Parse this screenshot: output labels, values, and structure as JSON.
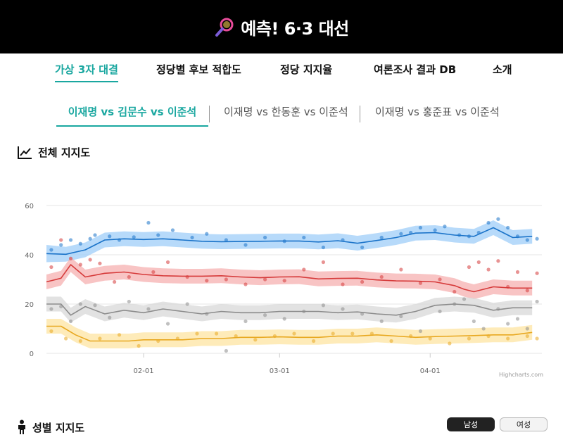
{
  "header": {
    "title": "예측! 6·3 대선"
  },
  "nav": [
    {
      "label": "가상 3자 대결",
      "active": true
    },
    {
      "label": "정당별 후보 적합도",
      "active": false
    },
    {
      "label": "정당 지지율",
      "active": false
    },
    {
      "label": "여론조사 결과 DB",
      "active": false
    },
    {
      "label": "소개",
      "active": false
    }
  ],
  "subnav": [
    {
      "label": "이재명 vs 김문수 vs 이준석",
      "active": true
    },
    {
      "label": "이재명 vs 한동훈 vs 이준석",
      "active": false
    },
    {
      "label": "이재명 vs 홍준표 vs 이준석",
      "active": false
    }
  ],
  "sections": {
    "overall": "전체 지지도",
    "gender": "성별 지지도"
  },
  "gender_buttons": [
    {
      "label": "남성",
      "active": true
    },
    {
      "label": "여성",
      "active": false
    }
  ],
  "chart_data": {
    "type": "line",
    "ylim": [
      0,
      60
    ],
    "yticks": [
      0,
      20,
      40,
      60
    ],
    "xlim": [
      "2025-01-12",
      "2025-04-24"
    ],
    "xticks": [
      "02-01",
      "03-01",
      "04-01"
    ],
    "xtick_dates": [
      "2025-02-01",
      "2025-03-01",
      "2025-04-01"
    ],
    "credit": "Highcharts.com",
    "series": [
      {
        "color": "#1a73c9",
        "band_color": "#9fcdf8",
        "x": [
          "2025-01-12",
          "2025-01-16",
          "2025-01-20",
          "2025-01-24",
          "2025-01-28",
          "2025-02-01",
          "2025-02-05",
          "2025-02-09",
          "2025-02-13",
          "2025-02-17",
          "2025-02-21",
          "2025-02-25",
          "2025-03-01",
          "2025-03-05",
          "2025-03-09",
          "2025-03-13",
          "2025-03-17",
          "2025-03-21",
          "2025-03-25",
          "2025-03-29",
          "2025-04-02",
          "2025-04-06",
          "2025-04-10",
          "2025-04-14",
          "2025-04-18",
          "2025-04-22"
        ],
        "values": [
          40.5,
          40.2,
          42,
          46,
          46.5,
          46.2,
          46.5,
          46,
          45.5,
          45.3,
          45.4,
          45.5,
          45.6,
          45.6,
          45.2,
          45.7,
          44.7,
          45.8,
          47,
          48.8,
          49,
          48,
          47.5,
          51,
          47,
          47.5
        ],
        "band": [
          3.5,
          3,
          3,
          3,
          3,
          3,
          3,
          3,
          3,
          3,
          3,
          3,
          3,
          3,
          3,
          3,
          3,
          3,
          3,
          3,
          3,
          3,
          3,
          3,
          3,
          3
        ],
        "points": [
          [
            "2025-01-13",
            42
          ],
          [
            "2025-01-15",
            44
          ],
          [
            "2025-01-17",
            46
          ],
          [
            "2025-01-19",
            44.5
          ],
          [
            "2025-01-21",
            46.5
          ],
          [
            "2025-01-22",
            48
          ],
          [
            "2025-01-25",
            47.5
          ],
          [
            "2025-01-27",
            46
          ],
          [
            "2025-01-30",
            47.2
          ],
          [
            "2025-02-02",
            53
          ],
          [
            "2025-02-04",
            48
          ],
          [
            "2025-02-07",
            50
          ],
          [
            "2025-02-11",
            47
          ],
          [
            "2025-02-14",
            48.5
          ],
          [
            "2025-02-18",
            46
          ],
          [
            "2025-02-22",
            44
          ],
          [
            "2025-02-26",
            47
          ],
          [
            "2025-03-02",
            45.5
          ],
          [
            "2025-03-06",
            47
          ],
          [
            "2025-03-10",
            43
          ],
          [
            "2025-03-14",
            46
          ],
          [
            "2025-03-18",
            43
          ],
          [
            "2025-03-22",
            47
          ],
          [
            "2025-03-26",
            48.5
          ],
          [
            "2025-03-28",
            49
          ],
          [
            "2025-03-30",
            51
          ],
          [
            "2025-04-02",
            50
          ],
          [
            "2025-04-04",
            51.5
          ],
          [
            "2025-04-07",
            48
          ],
          [
            "2025-04-09",
            47.5
          ],
          [
            "2025-04-11",
            49
          ],
          [
            "2025-04-13",
            53
          ],
          [
            "2025-04-15",
            54.5
          ],
          [
            "2025-04-17",
            51
          ],
          [
            "2025-04-19",
            47.5
          ],
          [
            "2025-04-21",
            46
          ],
          [
            "2025-04-23",
            46.5
          ]
        ]
      },
      {
        "color": "#d63a3a",
        "band_color": "#f5b0b0",
        "x": [
          "2025-01-12",
          "2025-01-15",
          "2025-01-17",
          "2025-01-20",
          "2025-01-24",
          "2025-01-28",
          "2025-02-01",
          "2025-02-05",
          "2025-02-09",
          "2025-02-13",
          "2025-02-17",
          "2025-02-21",
          "2025-02-25",
          "2025-03-01",
          "2025-03-05",
          "2025-03-09",
          "2025-03-13",
          "2025-03-17",
          "2025-03-21",
          "2025-03-25",
          "2025-03-29",
          "2025-04-02",
          "2025-04-06",
          "2025-04-08",
          "2025-04-10",
          "2025-04-14",
          "2025-04-18",
          "2025-04-22"
        ],
        "values": [
          29,
          30.5,
          36,
          31,
          32.5,
          33,
          32,
          31.5,
          31.3,
          31.3,
          31.5,
          31,
          30.7,
          31,
          31.1,
          30.2,
          30.4,
          30.5,
          29.8,
          29.4,
          29.3,
          29,
          27.5,
          26,
          25,
          27,
          26.5,
          26.5
        ],
        "band": [
          3,
          3,
          3,
          3,
          3,
          3,
          3,
          3,
          3,
          3,
          3,
          3,
          3,
          3,
          3,
          3,
          3,
          3,
          3,
          3,
          3,
          3,
          3,
          3,
          3,
          3,
          3,
          3
        ],
        "points": [
          [
            "2025-01-13",
            35
          ],
          [
            "2025-01-15",
            46
          ],
          [
            "2025-01-17",
            38.5
          ],
          [
            "2025-01-19",
            36
          ],
          [
            "2025-01-21",
            38
          ],
          [
            "2025-01-23",
            36.5
          ],
          [
            "2025-01-26",
            29
          ],
          [
            "2025-01-29",
            31
          ],
          [
            "2025-02-03",
            33
          ],
          [
            "2025-02-06",
            37
          ],
          [
            "2025-02-10",
            31
          ],
          [
            "2025-02-14",
            29.5
          ],
          [
            "2025-02-18",
            30
          ],
          [
            "2025-02-22",
            28
          ],
          [
            "2025-02-26",
            30
          ],
          [
            "2025-03-02",
            29.5
          ],
          [
            "2025-03-06",
            34
          ],
          [
            "2025-03-10",
            37
          ],
          [
            "2025-03-14",
            28
          ],
          [
            "2025-03-18",
            29
          ],
          [
            "2025-03-22",
            31
          ],
          [
            "2025-03-26",
            34
          ],
          [
            "2025-03-30",
            28.5
          ],
          [
            "2025-04-03",
            30
          ],
          [
            "2025-04-06",
            25
          ],
          [
            "2025-04-09",
            35
          ],
          [
            "2025-04-11",
            37
          ],
          [
            "2025-04-13",
            34
          ],
          [
            "2025-04-15",
            37.5
          ],
          [
            "2025-04-17",
            27
          ],
          [
            "2025-04-19",
            33
          ],
          [
            "2025-04-21",
            25.5
          ],
          [
            "2025-04-23",
            32.5
          ]
        ]
      },
      {
        "color": "#8c8c8c",
        "band_color": "#d8d8d8",
        "x": [
          "2025-01-12",
          "2025-01-15",
          "2025-01-17",
          "2025-01-20",
          "2025-01-24",
          "2025-01-28",
          "2025-02-01",
          "2025-02-05",
          "2025-02-09",
          "2025-02-13",
          "2025-02-17",
          "2025-02-21",
          "2025-02-25",
          "2025-03-01",
          "2025-03-05",
          "2025-03-09",
          "2025-03-13",
          "2025-03-17",
          "2025-03-21",
          "2025-03-25",
          "2025-03-29",
          "2025-04-02",
          "2025-04-06",
          "2025-04-10",
          "2025-04-14",
          "2025-04-18",
          "2025-04-22"
        ],
        "values": [
          20,
          20,
          15.5,
          19,
          16,
          17.5,
          16.5,
          18,
          17,
          16,
          17,
          16.5,
          16.5,
          17,
          17,
          17,
          16.5,
          16.8,
          16,
          15.5,
          17,
          19.5,
          20,
          19.5,
          17.5,
          18.5,
          18.5
        ],
        "band": [
          3,
          3,
          3,
          3,
          3,
          3,
          3,
          3,
          3,
          3,
          3,
          3,
          3,
          3,
          3,
          3,
          3,
          3,
          3,
          3,
          3,
          3,
          3,
          3,
          3,
          3,
          3
        ],
        "points": [
          [
            "2025-01-13",
            18
          ],
          [
            "2025-01-15",
            19
          ],
          [
            "2025-01-17",
            13
          ],
          [
            "2025-01-19",
            20
          ],
          [
            "2025-01-22",
            19.5
          ],
          [
            "2025-01-25",
            14.5
          ],
          [
            "2025-01-29",
            21
          ],
          [
            "2025-02-02",
            18
          ],
          [
            "2025-02-06",
            12
          ],
          [
            "2025-02-10",
            20
          ],
          [
            "2025-02-14",
            16
          ],
          [
            "2025-02-18",
            1
          ],
          [
            "2025-02-22",
            13
          ],
          [
            "2025-02-26",
            15.5
          ],
          [
            "2025-03-02",
            14
          ],
          [
            "2025-03-06",
            17
          ],
          [
            "2025-03-10",
            19.5
          ],
          [
            "2025-03-14",
            18
          ],
          [
            "2025-03-18",
            16
          ],
          [
            "2025-03-22",
            13
          ],
          [
            "2025-03-26",
            15
          ],
          [
            "2025-03-30",
            9
          ],
          [
            "2025-04-03",
            17
          ],
          [
            "2025-04-06",
            20
          ],
          [
            "2025-04-08",
            22
          ],
          [
            "2025-04-10",
            13
          ],
          [
            "2025-04-12",
            10
          ],
          [
            "2025-04-15",
            18
          ],
          [
            "2025-04-17",
            12
          ],
          [
            "2025-04-19",
            14
          ],
          [
            "2025-04-21",
            10
          ],
          [
            "2025-04-23",
            21
          ]
        ]
      },
      {
        "color": "#e8a820",
        "band_color": "#fde4a2",
        "x": [
          "2025-01-12",
          "2025-01-15",
          "2025-01-18",
          "2025-01-21",
          "2025-01-25",
          "2025-01-29",
          "2025-02-01",
          "2025-02-05",
          "2025-02-09",
          "2025-02-13",
          "2025-02-17",
          "2025-02-21",
          "2025-02-25",
          "2025-03-01",
          "2025-03-05",
          "2025-03-09",
          "2025-03-13",
          "2025-03-17",
          "2025-03-21",
          "2025-03-25",
          "2025-03-29",
          "2025-04-02",
          "2025-04-06",
          "2025-04-10",
          "2025-04-14",
          "2025-04-18",
          "2025-04-22"
        ],
        "values": [
          11,
          11,
          7.5,
          5,
          5,
          5,
          5.5,
          5.5,
          5.5,
          6,
          6,
          6.5,
          6.5,
          6.7,
          6.5,
          6.5,
          7,
          7,
          7.5,
          7,
          6.5,
          6.8,
          7,
          7.2,
          7.5,
          7.5,
          8.5
        ],
        "band": [
          3,
          3,
          3,
          3,
          3,
          3,
          3,
          3,
          3,
          3,
          3,
          3,
          3,
          3,
          3,
          3,
          3,
          3,
          3,
          3,
          3,
          3,
          3,
          3,
          3,
          3,
          3
        ],
        "points": [
          [
            "2025-01-13",
            9
          ],
          [
            "2025-01-16",
            6
          ],
          [
            "2025-01-19",
            5
          ],
          [
            "2025-01-23",
            6
          ],
          [
            "2025-01-27",
            7.5
          ],
          [
            "2025-01-31",
            3
          ],
          [
            "2025-02-04",
            5
          ],
          [
            "2025-02-08",
            6
          ],
          [
            "2025-02-12",
            8
          ],
          [
            "2025-02-16",
            8
          ],
          [
            "2025-02-20",
            7
          ],
          [
            "2025-02-24",
            5.5
          ],
          [
            "2025-02-28",
            7
          ],
          [
            "2025-03-04",
            8
          ],
          [
            "2025-03-08",
            5
          ],
          [
            "2025-03-12",
            8
          ],
          [
            "2025-03-16",
            8
          ],
          [
            "2025-03-20",
            8
          ],
          [
            "2025-03-24",
            5
          ],
          [
            "2025-03-28",
            7
          ],
          [
            "2025-04-01",
            6
          ],
          [
            "2025-04-05",
            4
          ],
          [
            "2025-04-09",
            6
          ],
          [
            "2025-04-13",
            7
          ],
          [
            "2025-04-17",
            6
          ],
          [
            "2025-04-21",
            7
          ],
          [
            "2025-04-23",
            6
          ]
        ]
      }
    ]
  }
}
